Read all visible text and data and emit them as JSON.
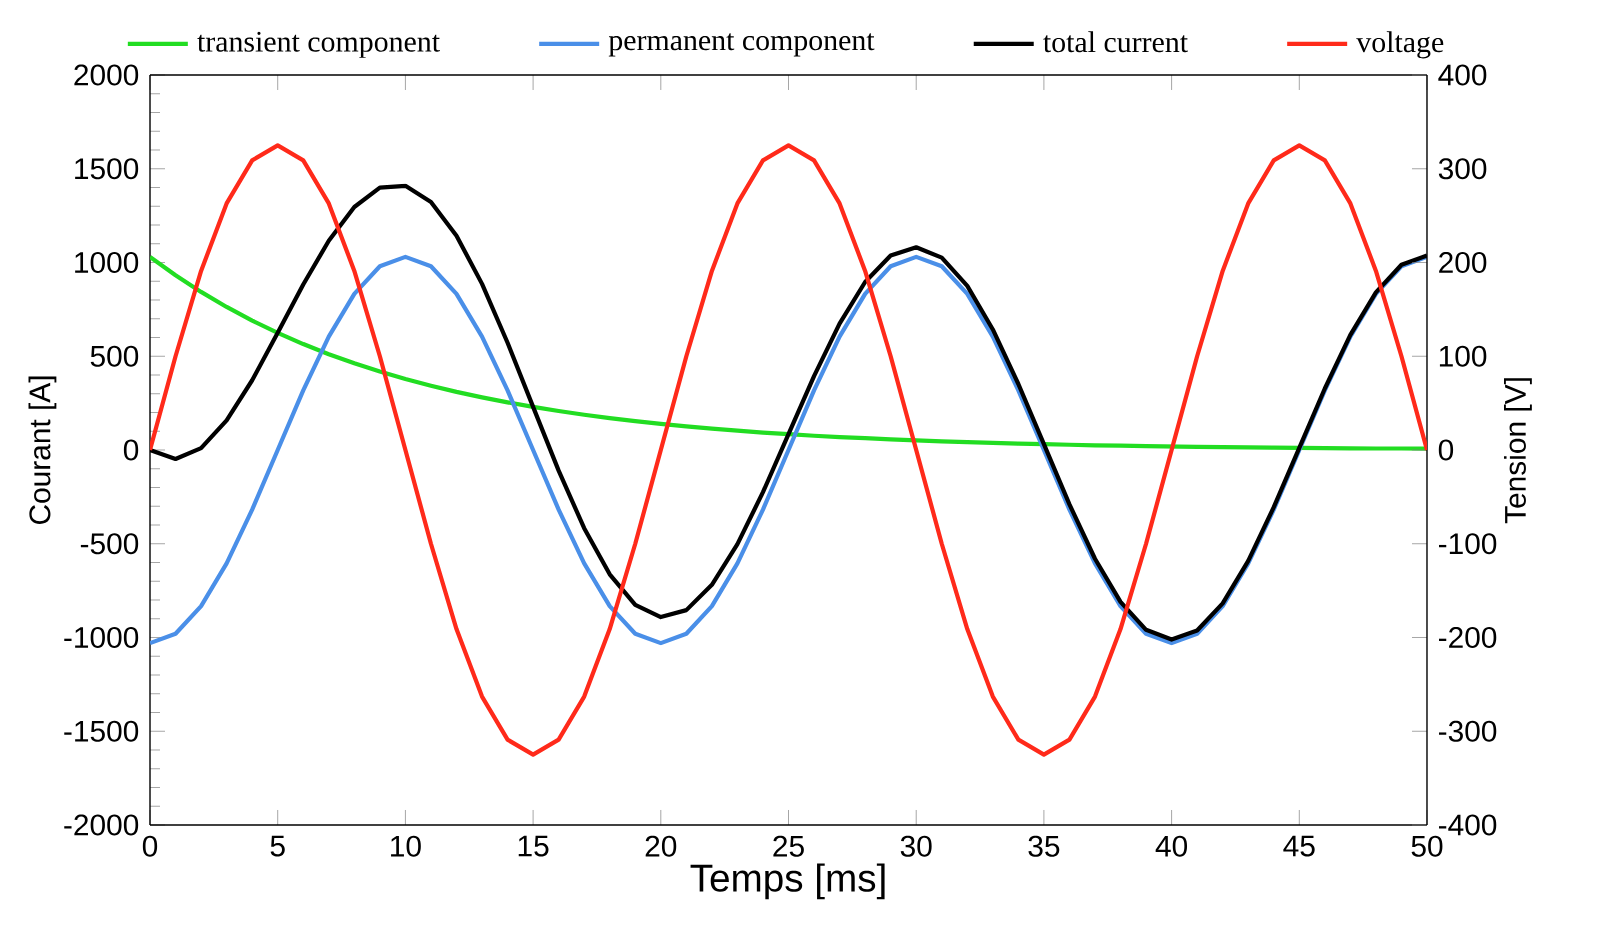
{
  "chart_data": {
    "type": "line",
    "xlabel": "Temps [ms]",
    "ylabel": "Courant [A]",
    "y2label": "Tension [V]",
    "x": [
      0,
      1,
      2,
      3,
      4,
      5,
      6,
      7,
      8,
      9,
      10,
      11,
      12,
      13,
      14,
      15,
      16,
      17,
      18,
      19,
      20,
      21,
      22,
      23,
      24,
      25,
      26,
      27,
      28,
      29,
      30,
      31,
      32,
      33,
      34,
      35,
      36,
      37,
      38,
      39,
      40,
      41,
      42,
      43,
      44,
      45,
      46,
      47,
      48,
      49,
      50
    ],
    "xlim": [
      0,
      50
    ],
    "xticks": [
      0,
      5,
      10,
      15,
      20,
      25,
      30,
      35,
      40,
      45,
      50
    ],
    "ylim": [
      -2000,
      2000
    ],
    "yticks": [
      -2000,
      -1500,
      -1000,
      -500,
      0,
      500,
      1000,
      1500,
      2000
    ],
    "y2lim": [
      -400,
      400
    ],
    "y2ticks": [
      -400,
      -300,
      -200,
      -100,
      0,
      100,
      200,
      300,
      400
    ],
    "legend": "top",
    "grid": false,
    "marker": "none",
    "line_style": "solid",
    "series": [
      {
        "name": "transient component",
        "color": "#22dd22",
        "values": [
          1030,
          932,
          843,
          763,
          690,
          625,
          565,
          511,
          463,
          419,
          379,
          343,
          310,
          281,
          254,
          230,
          208,
          188,
          170,
          154,
          139,
          126,
          114,
          103,
          93,
          85,
          76,
          69,
          63,
          57,
          51,
          46,
          42,
          38,
          34,
          31,
          28,
          25,
          23,
          21,
          19,
          17,
          15,
          14,
          13,
          11,
          10,
          9,
          8,
          8,
          7
        ]
      },
      {
        "name": "permanent component",
        "color": "#4a8fe8",
        "values": [
          -1030,
          -980,
          -833,
          -605,
          -318,
          0,
          318,
          605,
          833,
          980,
          1030,
          980,
          833,
          605,
          318,
          0,
          -318,
          -605,
          -833,
          -980,
          -1030,
          -980,
          -833,
          -605,
          -318,
          0,
          318,
          605,
          833,
          980,
          1030,
          980,
          833,
          605,
          318,
          0,
          -318,
          -605,
          -833,
          -980,
          -1030,
          -980,
          -833,
          -605,
          -318,
          0,
          318,
          605,
          833,
          980,
          1030
        ]
      },
      {
        "name": "total current",
        "color": "#000000",
        "values": [
          0,
          -48,
          10,
          158,
          372,
          625,
          883,
          1116,
          1296,
          1399,
          1409,
          1323,
          1143,
          886,
          572,
          230,
          -110,
          -417,
          -663,
          -826,
          -891,
          -854,
          -719,
          -502,
          -225,
          85,
          394,
          674,
          896,
          1037,
          1081,
          1026,
          875,
          643,
          352,
          31,
          -290,
          -580,
          -810,
          -959,
          -1011,
          -963,
          -818,
          -591,
          -305,
          11,
          328,
          614,
          841,
          988,
          1037
        ]
      },
      {
        "name": "voltage",
        "color": "#ff2a1a",
        "axis": "y2",
        "values": [
          0,
          100,
          191,
          263,
          309,
          325,
          309,
          263,
          191,
          100,
          0,
          -100,
          -191,
          -263,
          -309,
          -325,
          -309,
          -263,
          -191,
          -100,
          0,
          100,
          191,
          263,
          309,
          325,
          309,
          263,
          191,
          100,
          0,
          -100,
          -191,
          -263,
          -309,
          -325,
          -309,
          -263,
          -191,
          -100,
          0,
          100,
          191,
          263,
          309,
          325,
          309,
          263,
          191,
          100,
          0
        ]
      }
    ]
  }
}
